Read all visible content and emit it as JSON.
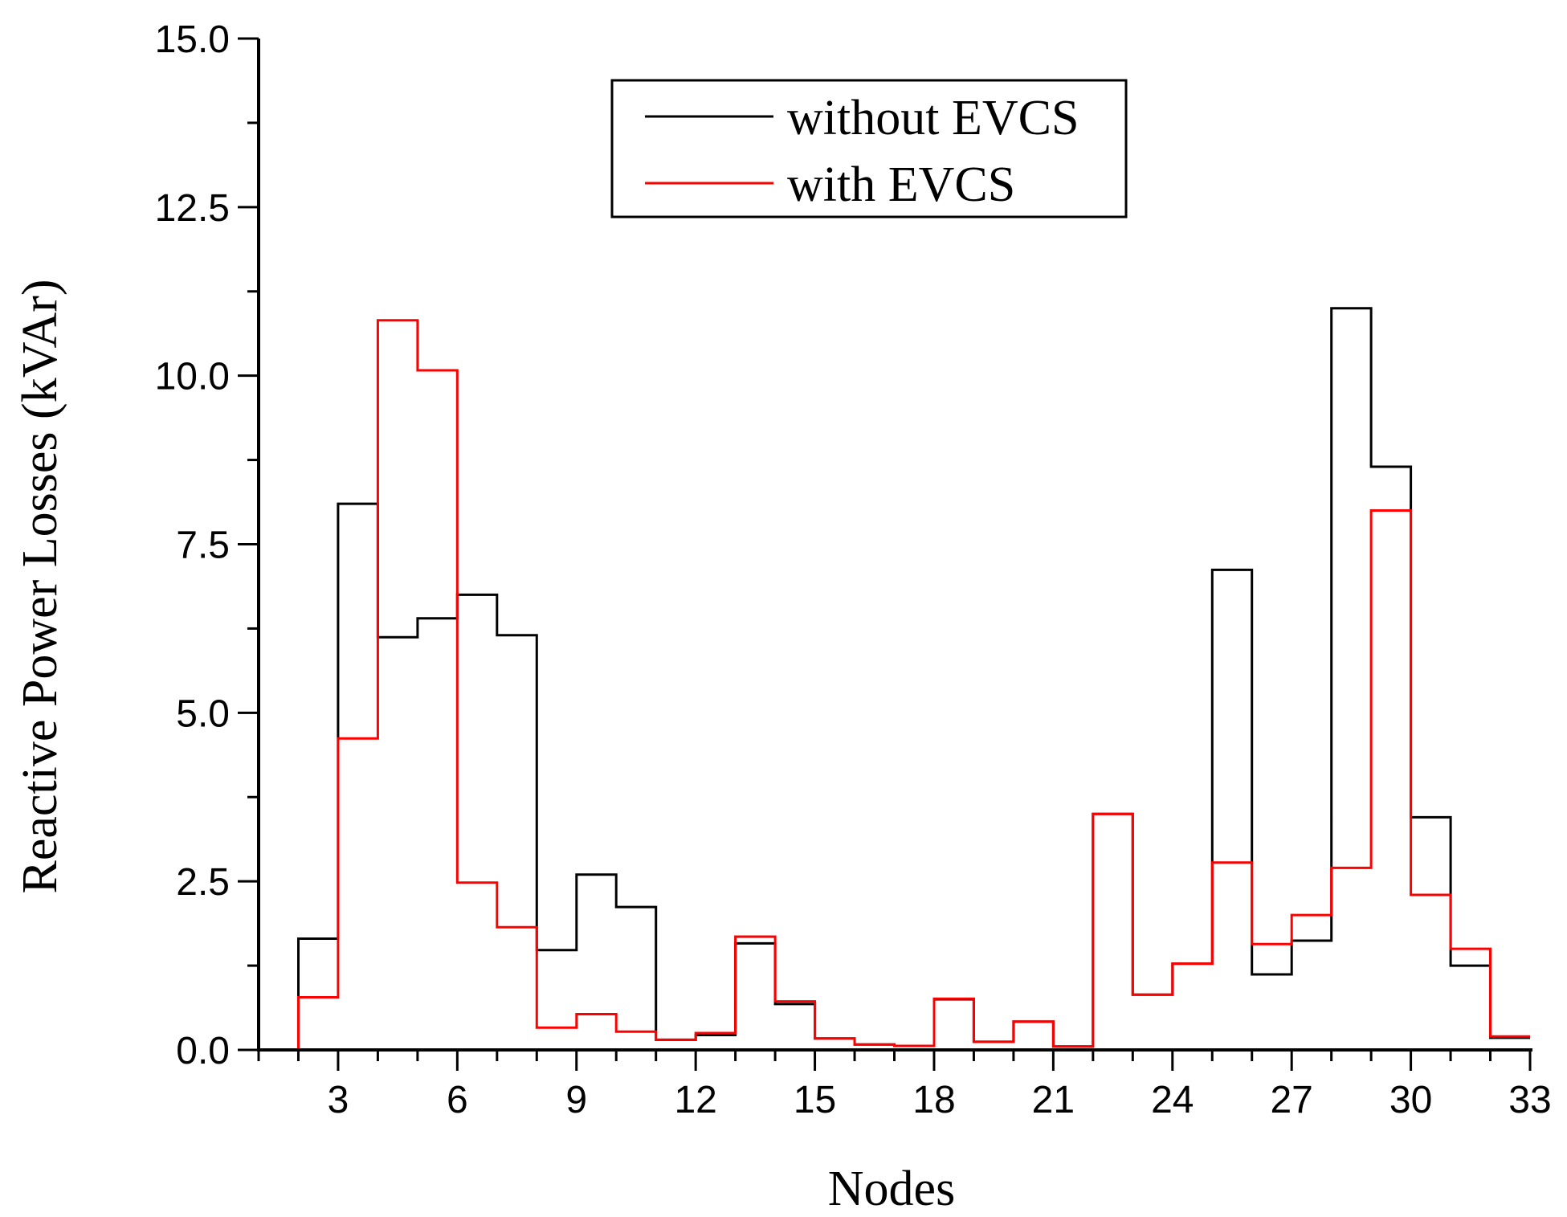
{
  "chart_data": {
    "type": "line",
    "style": "step",
    "title": "",
    "xlabel": "Nodes",
    "ylabel": "Reactive Power Losses (kVAr)",
    "xlim": [
      1,
      33
    ],
    "ylim": [
      0,
      15
    ],
    "x_ticks": [
      3,
      6,
      9,
      12,
      15,
      18,
      21,
      24,
      27,
      30,
      33
    ],
    "y_ticks": [
      "0.0",
      "2.5",
      "5.0",
      "7.5",
      "10.0",
      "12.5",
      "15.0"
    ],
    "legend_position": "top-center",
    "x": [
      1,
      2,
      3,
      4,
      5,
      6,
      7,
      8,
      9,
      10,
      11,
      12,
      13,
      14,
      15,
      16,
      17,
      18,
      19,
      20,
      21,
      22,
      23,
      24,
      25,
      26,
      27,
      28,
      29,
      30,
      31,
      32
    ],
    "series": [
      {
        "name": "without EVCS",
        "color": "#000000",
        "values": [
          0.0,
          1.65,
          8.1,
          6.12,
          6.4,
          6.75,
          6.15,
          1.48,
          2.6,
          2.12,
          0.15,
          0.22,
          1.58,
          0.68,
          0.17,
          0.08,
          0.06,
          0.75,
          0.12,
          0.42,
          0.05,
          3.5,
          0.82,
          1.28,
          7.12,
          1.12,
          1.62,
          11.0,
          8.65,
          3.45,
          1.25,
          0.18
        ]
      },
      {
        "name": "with EVCS",
        "color": "#ff0000",
        "values": [
          0.0,
          0.78,
          4.62,
          10.82,
          10.08,
          2.48,
          1.82,
          0.33,
          0.53,
          0.27,
          0.15,
          0.25,
          1.68,
          0.72,
          0.17,
          0.08,
          0.06,
          0.76,
          0.12,
          0.42,
          0.05,
          3.5,
          0.82,
          1.28,
          2.78,
          1.57,
          2.0,
          2.7,
          8.0,
          2.3,
          1.5,
          0.2
        ]
      }
    ]
  }
}
